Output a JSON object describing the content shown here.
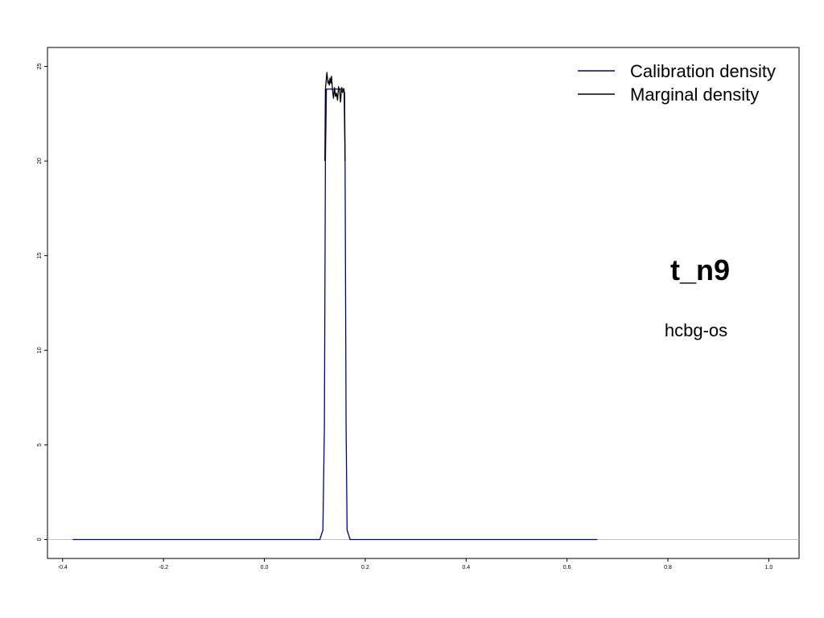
{
  "chart_data": {
    "type": "line",
    "title": "t_n9",
    "subtitle": "hcbg-os",
    "xlim": [
      -0.43,
      1.06
    ],
    "ylim": [
      -1,
      26
    ],
    "x_ticks": [
      -0.4,
      -0.2,
      0.0,
      0.2,
      0.4,
      0.6,
      0.8,
      1.0
    ],
    "x_tick_labels": [
      "-0.4",
      "-0.2",
      "0.0",
      "0.2",
      "0.4",
      "0.6",
      "0.8",
      "1.0"
    ],
    "y_ticks": [
      0,
      5,
      10,
      15,
      20,
      25
    ],
    "y_tick_labels": [
      "0",
      "5",
      "10",
      "15",
      "20",
      "25"
    ],
    "legend": {
      "position": "top-right",
      "entries": [
        "Calibration density",
        "Marginal density"
      ]
    },
    "grid": false,
    "baseline": {
      "y": 0,
      "color": "#bfbfbf"
    },
    "series": [
      {
        "name": "Calibration density",
        "color": "#00008b",
        "x": [
          -0.38,
          0.11,
          0.116,
          0.119,
          0.121,
          0.123,
          0.13,
          0.14,
          0.15,
          0.158,
          0.16,
          0.162,
          0.164,
          0.17,
          0.66
        ],
        "y": [
          0,
          0,
          0.5,
          6,
          20,
          23.8,
          23.8,
          23.8,
          23.8,
          23.8,
          20,
          6,
          0.5,
          0,
          0
        ]
      },
      {
        "name": "Marginal density",
        "color": "#000000",
        "x": [
          0.12,
          0.121,
          0.124,
          0.126,
          0.127,
          0.129,
          0.13,
          0.132,
          0.133,
          0.135,
          0.137,
          0.139,
          0.141,
          0.143,
          0.145,
          0.147,
          0.149,
          0.151,
          0.153,
          0.155,
          0.157,
          0.159,
          0.16
        ],
        "y": [
          20,
          23.8,
          24.7,
          24.1,
          24.2,
          24.0,
          24.4,
          24.1,
          24.5,
          23.8,
          23.3,
          23.9,
          23.4,
          23.6,
          23.2,
          23.9,
          23.8,
          23.1,
          23.9,
          23.6,
          23.8,
          23.6,
          20
        ]
      }
    ]
  }
}
